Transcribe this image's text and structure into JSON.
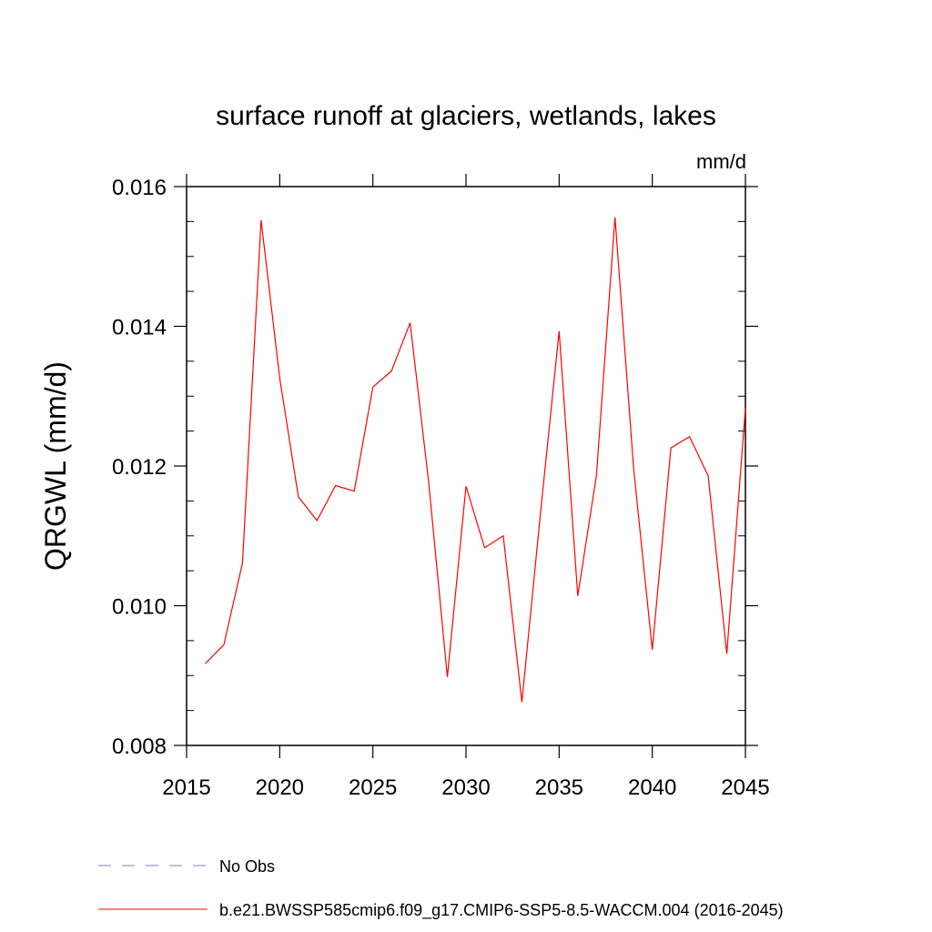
{
  "chart_data": {
    "type": "line",
    "title": "surface runoff at glaciers, wetlands, lakes",
    "units_label": "mm/d",
    "xlabel": "",
    "ylabel": "QRGWL  (mm/d)",
    "xlim": [
      2015,
      2045
    ],
    "ylim": [
      0.008,
      0.016
    ],
    "x_ticks": [
      2015,
      2020,
      2025,
      2030,
      2035,
      2040,
      2045
    ],
    "x_tick_labels": [
      "2015",
      "2020",
      "2025",
      "2030",
      "2035",
      "2040",
      "2045"
    ],
    "y_ticks": [
      0.008,
      0.01,
      0.012,
      0.014,
      0.016
    ],
    "y_tick_labels": [
      "0.008",
      "0.010",
      "0.012",
      "0.014",
      "0.016"
    ],
    "grid": false,
    "legend_position": "bottom",
    "series": [
      {
        "name": "b.e21.BWSSP585cmip6.f09_g17.CMIP6-SSP5-8.5-WACCM.004 (2016-2045)",
        "color": "#ff0000",
        "style": "solid",
        "x": [
          2016,
          2017,
          2018,
          2019,
          2020,
          2021,
          2022,
          2023,
          2024,
          2025,
          2026,
          2027,
          2028,
          2029,
          2030,
          2031,
          2032,
          2033,
          2034,
          2035,
          2036,
          2037,
          2038,
          2039,
          2040,
          2041,
          2042,
          2043,
          2044,
          2045
        ],
        "values": [
          0.00917,
          0.00944,
          0.01061,
          0.01552,
          0.01326,
          0.01156,
          0.01122,
          0.01172,
          0.01164,
          0.01313,
          0.01336,
          0.01405,
          0.01176,
          0.00898,
          0.01171,
          0.01083,
          0.011,
          0.00862,
          0.01133,
          0.01393,
          0.01014,
          0.01186,
          0.01556,
          0.01196,
          0.00937,
          0.01226,
          0.01242,
          0.01186,
          0.00931,
          0.01283
        ]
      }
    ],
    "legend": [
      {
        "label": "No Obs",
        "color": "#8080c0",
        "style": "dashed"
      },
      {
        "label": "b.e21.BWSSP585cmip6.f09_g17.CMIP6-SSP5-8.5-WACCM.004 (2016-2045)",
        "color": "#ff0000",
        "style": "solid"
      }
    ]
  }
}
